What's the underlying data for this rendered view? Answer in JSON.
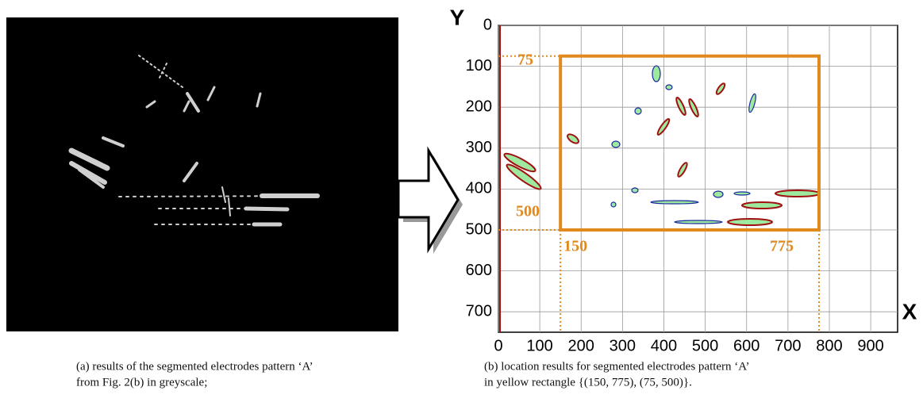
{
  "caption_a": [
    "(a) results of the segmented electrodes pattern ‘A’",
    "from Fig. 2(b) in greyscale;"
  ],
  "caption_b": [
    "(b) location results for segmented  electrodes pattern ‘A’",
    "in yellow rectangle {(150, 775), (75, 500)}."
  ],
  "chart_data": {
    "type": "contour",
    "x_label": "X",
    "y_label": "Y",
    "xlim": [
      0,
      965
    ],
    "ylim": [
      0,
      750
    ],
    "y_inverted": true,
    "xticks": [
      0,
      100,
      200,
      300,
      400,
      500,
      600,
      700,
      800,
      900
    ],
    "yticks": [
      0,
      100,
      200,
      300,
      400,
      500,
      600,
      700
    ],
    "grid": true,
    "rectangle": {
      "x0": 150,
      "x1": 775,
      "y0": 75,
      "y1": 500,
      "color": "#e08a1e"
    }
  }
}
